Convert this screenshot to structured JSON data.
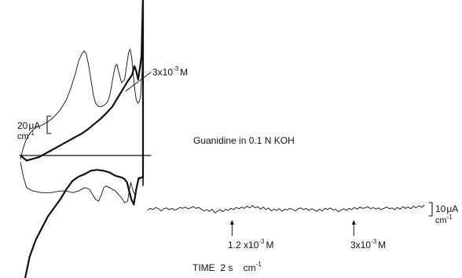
{
  "chart_data": [
    {
      "type": "line",
      "subtitle": "Guanidine in 0.1 N KOH",
      "scale_bar": {
        "value": "20",
        "unit_line1": "μA",
        "unit_line2": "cm",
        "unit_line2_sup": "-1"
      },
      "annotations": [
        {
          "mantissa": "3x10",
          "exponent": "-3",
          "unit": "M"
        }
      ],
      "series": [
        {
          "x": [
            0.0,
            0.1,
            0.2,
            0.35,
            0.5,
            0.7,
            0.9,
            1.1,
            1.3,
            1.5,
            1.65,
            1.8,
            1.9,
            2.0,
            2.08,
            2.15,
            2.22,
            2.3,
            2.38,
            2.45,
            2.55,
            2.65,
            2.75,
            2.85,
            2.92,
            2.98,
            3.05,
            3.1,
            3.15,
            3.2,
            3.3,
            3.4,
            3.48,
            3.53,
            3.58,
            3.63,
            3.68,
            3.73,
            3.78,
            3.83,
            3.88,
            3.92,
            3.97,
            4.0,
            4.0,
            3.95,
            3.85,
            3.8,
            3.75,
            3.68,
            3.6,
            3.55,
            3.5,
            3.4,
            3.3,
            3.1,
            2.9,
            2.8,
            2.72,
            2.65,
            2.55,
            2.45,
            2.35,
            2.25,
            2.1,
            1.9,
            1.7,
            1.5,
            1.3,
            1.0,
            0.7,
            0.4,
            0.2,
            0.1,
            0.0
          ],
          "y": [
            -0.2,
            0.5,
            1.0,
            1.4,
            1.65,
            1.8,
            2.0,
            2.3,
            2.7,
            3.3,
            4.0,
            4.9,
            5.6,
            6.0,
            6.2,
            6.0,
            5.4,
            4.5,
            3.6,
            3.1,
            2.9,
            2.9,
            3.0,
            3.2,
            3.6,
            4.2,
            4.9,
            5.3,
            5.4,
            5.0,
            4.3,
            4.5,
            5.5,
            6.1,
            6.3,
            5.8,
            4.9,
            3.9,
            3.3,
            3.1,
            3.2,
            3.5,
            5.0,
            9.0,
            -1.2,
            -1.3,
            -1.3,
            -1.9,
            -2.4,
            -2.1,
            -1.6,
            -2.1,
            -2.7,
            -2.8,
            -2.5,
            -2.1,
            -1.9,
            -1.8,
            -1.9,
            -2.3,
            -2.7,
            -2.6,
            -2.3,
            -2.0,
            -1.9,
            -2.1,
            -2.2,
            -2.1,
            -2.1,
            -2.2,
            -2.2,
            -2.1,
            -1.9,
            -1.3,
            -0.4
          ]
        },
        {
          "x": [
            0.0,
            0.2,
            0.4,
            0.6,
            0.8,
            1.0,
            1.2,
            1.4,
            1.6,
            1.8,
            2.0,
            2.2,
            2.4,
            2.6,
            2.8,
            3.0,
            3.1,
            3.2,
            3.3,
            3.4,
            3.5,
            3.58,
            3.65,
            3.72,
            3.78,
            3.84,
            3.9,
            3.95,
            4.0,
            4.0,
            4.0,
            3.95,
            3.85,
            3.78,
            3.7,
            3.62,
            3.55,
            3.48,
            3.4,
            3.3,
            3.1,
            2.9,
            2.7,
            2.5,
            2.3,
            2.1,
            1.9,
            1.7,
            1.5,
            1.3,
            1.1,
            0.9,
            0.7,
            0.5,
            0.3,
            0.15,
            0.05,
            0.0
          ],
          "y": [
            0.0,
            -0.3,
            -0.2,
            -0.1,
            0.1,
            0.3,
            0.5,
            0.7,
            0.9,
            1.1,
            1.3,
            1.55,
            1.85,
            2.15,
            2.5,
            2.9,
            3.2,
            3.5,
            3.8,
            4.1,
            4.4,
            4.6,
            4.8,
            5.3,
            5.0,
            4.5,
            5.2,
            5.9,
            9.5,
            10.5,
            -1.3,
            -1.3,
            -1.4,
            -2.0,
            -2.9,
            -2.6,
            -2.1,
            -1.6,
            -1.4,
            -1.3,
            -1.2,
            -1.0,
            -0.9,
            -0.85,
            -0.9,
            -1.1,
            -1.25,
            -1.5,
            -2.0,
            -2.6,
            -3.1,
            -3.6,
            -4.3,
            -5.0,
            -6.0,
            -7.3,
            -7.9,
            -7.6
          ]
        }
      ],
      "lines": {
        "baseline_y": 0.0,
        "cutoff_x": 4.0
      }
    },
    {
      "type": "line",
      "xlabel": "TIME  2 s    cm",
      "xlabel_sup": "-1",
      "scale_bar": {
        "value": "10",
        "unit_line1": "μA",
        "unit_line2": "cm",
        "unit_line2_sup": "-1"
      },
      "annotations": [
        {
          "mantissa": "1.2 x10",
          "exponent": "-3",
          "unit": "M"
        },
        {
          "mantissa": "3x10",
          "exponent": "-3",
          "unit": "M"
        }
      ],
      "trace": [
        0.1,
        0.5,
        0.2,
        0.7,
        0.4,
        -0.1,
        0.4,
        0.6,
        0.2,
        0.5,
        0.1,
        0.3,
        0.7,
        0.5,
        0.8,
        0.4,
        0.6,
        0.9,
        0.5,
        0.7,
        0.3,
        -0.1,
        0.2,
        -0.2,
        0.3,
        -0.6,
        -0.1,
        0.2,
        -0.3,
        0.3,
        0.0,
        0.5,
        0.2,
        0.7,
        0.4,
        0.8,
        0.5,
        1.0,
        0.6,
        1.1,
        0.6,
        0.9,
        0.3,
        0.8,
        0.2,
        0.6,
        -0.1,
        0.3,
        0.0,
        0.4,
        -0.2,
        0.3,
        0.1,
        0.5,
        0.2,
        -0.1,
        0.4,
        0.6,
        0.2,
        0.5,
        0.0,
        0.4,
        0.1,
        -0.2,
        0.3,
        -0.1,
        0.5,
        0.2,
        0.6,
        0.1,
        0.3,
        -0.3,
        0.1,
        0.4,
        0.0,
        0.5,
        0.2,
        0.7,
        0.3,
        0.8,
        0.5,
        0.6,
        0.9,
        0.4,
        0.7,
        0.3,
        0.6,
        0.2,
        0.5,
        0.8,
        0.4,
        0.6,
        0.2,
        0.7,
        0.3,
        0.9,
        0.5,
        0.8,
        0.4,
        1.0,
        0.6,
        1.1,
        0.7,
        1.2
      ],
      "events": [
        {
          "label_index": 0,
          "trace_position": 0.305
        },
        {
          "label_index": 1,
          "trace_position": 0.745
        }
      ]
    }
  ]
}
